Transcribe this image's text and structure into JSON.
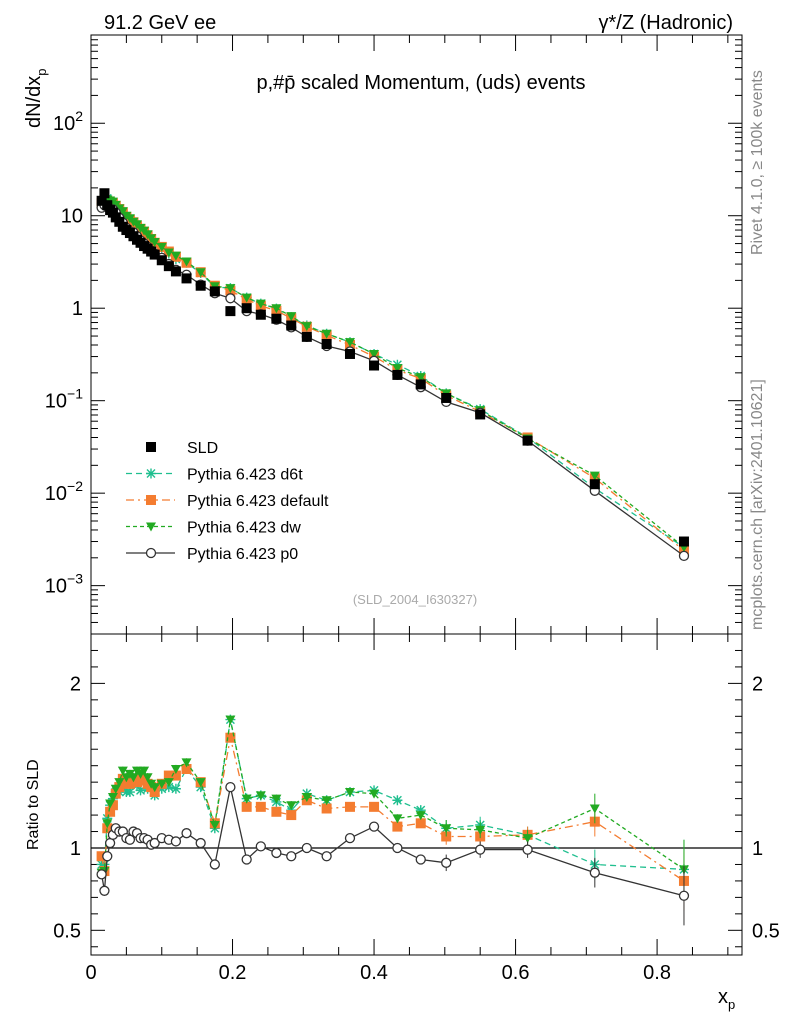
{
  "header": {
    "left": "91.2 GeV ee",
    "right": "γ*/Z (Hadronic)"
  },
  "side": {
    "rivet": "Rivet 4.1.0, ≥ 100k events",
    "mcplots": "mcplots.cern.ch [arXiv:2401.10621]"
  },
  "chart_data": {
    "type": "line",
    "title": "p,#p̄ scaled Momentum, (uds) events",
    "watermark": "(SLD_2004_I630327)",
    "xlabel": "x_p",
    "ylabel": "dN/dx_p",
    "ylabel_ratio": "Ratio to SLD",
    "xlim": [
      0,
      0.92
    ],
    "ylim_log": [
      0.0003,
      900
    ],
    "ratio_ylim": [
      0.35,
      2.3
    ],
    "x_ticks": [
      "0",
      "0.2",
      "0.4",
      "0.6",
      "0.8"
    ],
    "y_ticks": [
      {
        "v": 100,
        "base": "10",
        "exp": "2"
      },
      {
        "v": 10,
        "base": "10",
        "exp": ""
      },
      {
        "v": 1,
        "base": "1",
        "exp": ""
      },
      {
        "v": 0.1,
        "base": "10",
        "exp": "−1"
      },
      {
        "v": 0.01,
        "base": "10",
        "exp": "−2"
      },
      {
        "v": 0.001,
        "base": "10",
        "exp": "−3"
      }
    ],
    "ratio_ticks": [
      "0.5",
      "1",
      "2"
    ],
    "x": [
      0.015,
      0.019,
      0.023,
      0.027,
      0.031,
      0.035,
      0.04,
      0.045,
      0.05,
      0.055,
      0.06,
      0.065,
      0.07,
      0.075,
      0.08,
      0.085,
      0.09,
      0.1,
      0.11,
      0.12,
      0.135,
      0.155,
      0.175,
      0.197,
      0.22,
      0.24,
      0.262,
      0.283,
      0.305,
      0.333,
      0.366,
      0.4,
      0.433,
      0.466,
      0.502,
      0.55,
      0.617,
      0.712,
      0.838
    ],
    "series": [
      {
        "name": "SLD",
        "color": "#000000",
        "marker": "square",
        "values": [
          14.5,
          17.5,
          13.0,
          11.5,
          10.8,
          9.6,
          8.6,
          7.6,
          7.0,
          6.5,
          6.0,
          5.5,
          5.1,
          4.7,
          4.4,
          4.1,
          3.8,
          3.3,
          2.85,
          2.5,
          2.1,
          1.75,
          1.52,
          0.93,
          1.0,
          0.85,
          0.77,
          0.65,
          0.49,
          0.41,
          0.32,
          0.24,
          0.19,
          0.15,
          0.107,
          0.071,
          0.037,
          0.0125,
          0.003
        ]
      },
      {
        "name": "Pythia 6.423 d6t",
        "color": "#1fbf8f",
        "marker": "star",
        "dash": "6,4",
        "values": [
          13.0,
          15.7,
          15.4,
          14.5,
          14.0,
          12.9,
          11.5,
          10.5,
          9.4,
          8.7,
          8.5,
          7.6,
          6.9,
          6.6,
          6.0,
          5.6,
          5.0,
          4.5,
          3.9,
          3.4,
          3.1,
          2.4,
          1.7,
          1.65,
          1.3,
          1.12,
          0.99,
          0.8,
          0.65,
          0.53,
          0.43,
          0.32,
          0.245,
          0.185,
          0.12,
          0.081,
          0.04,
          0.0113,
          0.0026
        ]
      },
      {
        "name": "Pythia 6.423 default",
        "color": "#f47c30",
        "marker": "square",
        "dash": "8,4,2,4",
        "values": [
          13.7,
          15.0,
          14.6,
          14.0,
          13.6,
          12.8,
          11.8,
          10.8,
          9.7,
          9.0,
          8.5,
          7.7,
          7.2,
          6.7,
          6.1,
          5.6,
          5.1,
          4.6,
          4.1,
          3.6,
          3.1,
          2.45,
          1.75,
          1.55,
          1.25,
          1.06,
          0.94,
          0.78,
          0.63,
          0.51,
          0.4,
          0.3,
          0.215,
          0.173,
          0.114,
          0.076,
          0.04,
          0.0145,
          0.0024
        ]
      },
      {
        "name": "Pythia 6.423 dw",
        "color": "#22aa22",
        "marker": "tri",
        "dash": "4,3",
        "values": [
          12.3,
          15.1,
          15.0,
          14.6,
          14.2,
          13.1,
          12.0,
          11.2,
          10.0,
          9.4,
          8.6,
          8.1,
          7.4,
          6.9,
          6.3,
          5.7,
          5.2,
          4.6,
          4.0,
          3.7,
          3.2,
          2.45,
          1.73,
          1.65,
          1.3,
          1.12,
          1.0,
          0.82,
          0.64,
          0.53,
          0.43,
          0.32,
          0.225,
          0.18,
          0.12,
          0.079,
          0.039,
          0.0155,
          0.0026
        ]
      },
      {
        "name": "Pythia 6.423 p0",
        "color": "#333333",
        "marker": "circle",
        "values": [
          12.2,
          13.0,
          12.4,
          11.9,
          11.7,
          10.8,
          9.5,
          8.4,
          7.4,
          6.8,
          6.6,
          6.0,
          5.4,
          5.0,
          4.6,
          4.2,
          3.9,
          3.5,
          3.0,
          2.6,
          2.3,
          1.8,
          1.45,
          1.28,
          0.93,
          0.86,
          0.75,
          0.62,
          0.49,
          0.39,
          0.34,
          0.27,
          0.19,
          0.14,
          0.097,
          0.074,
          0.037,
          0.0106,
          0.0021
        ]
      }
    ],
    "ratio_series": [
      {
        "name": "Pythia 6.423 d6t",
        "values": [
          0.9,
          0.9,
          1.18,
          1.26,
          1.3,
          1.34,
          1.34,
          1.38,
          1.34,
          1.34,
          1.41,
          1.38,
          1.35,
          1.4,
          1.36,
          1.37,
          1.32,
          1.36,
          1.37,
          1.36,
          1.48,
          1.37,
          1.12,
          1.78,
          1.3,
          1.32,
          1.28,
          1.23,
          1.33,
          1.29,
          1.34,
          1.35,
          1.29,
          1.23,
          1.12,
          1.14,
          1.08,
          0.9,
          0.87
        ]
      },
      {
        "name": "Pythia 6.423 default",
        "values": [
          0.95,
          0.86,
          1.12,
          1.22,
          1.26,
          1.33,
          1.37,
          1.42,
          1.39,
          1.39,
          1.42,
          1.4,
          1.41,
          1.42,
          1.39,
          1.37,
          1.34,
          1.39,
          1.44,
          1.44,
          1.48,
          1.4,
          1.15,
          1.67,
          1.25,
          1.25,
          1.22,
          1.2,
          1.29,
          1.24,
          1.25,
          1.25,
          1.13,
          1.15,
          1.07,
          1.07,
          1.08,
          1.16,
          0.8
        ]
      },
      {
        "name": "Pythia 6.423 dw",
        "values": [
          0.85,
          0.86,
          1.15,
          1.27,
          1.31,
          1.36,
          1.4,
          1.47,
          1.43,
          1.45,
          1.43,
          1.47,
          1.45,
          1.47,
          1.43,
          1.39,
          1.37,
          1.39,
          1.4,
          1.48,
          1.52,
          1.4,
          1.14,
          1.78,
          1.3,
          1.32,
          1.3,
          1.26,
          1.31,
          1.29,
          1.34,
          1.33,
          1.18,
          1.2,
          1.12,
          1.11,
          1.06,
          1.24,
          0.87
        ]
      },
      {
        "name": "Pythia 6.423 p0",
        "values": [
          0.84,
          0.74,
          0.95,
          1.03,
          1.08,
          1.12,
          1.1,
          1.1,
          1.06,
          1.05,
          1.1,
          1.09,
          1.06,
          1.06,
          1.05,
          1.02,
          1.03,
          1.06,
          1.05,
          1.04,
          1.09,
          1.03,
          0.9,
          1.37,
          0.93,
          1.01,
          0.97,
          0.95,
          1.0,
          0.95,
          1.06,
          1.13,
          1.0,
          0.93,
          0.91,
          0.99,
          0.99,
          0.85,
          0.71
        ]
      }
    ],
    "legend": [
      {
        "label": "SLD",
        "color": "#000000",
        "marker": "square"
      },
      {
        "label": "Pythia 6.423 d6t",
        "color": "#1fbf8f",
        "marker": "star",
        "dash": "6,4"
      },
      {
        "label": "Pythia 6.423 default",
        "color": "#f47c30",
        "marker": "square",
        "dash": "8,4,2,4"
      },
      {
        "label": "Pythia 6.423 dw",
        "color": "#22aa22",
        "marker": "tri",
        "dash": "4,3"
      },
      {
        "label": "Pythia 6.423 p0",
        "color": "#333333",
        "marker": "circle"
      }
    ]
  }
}
